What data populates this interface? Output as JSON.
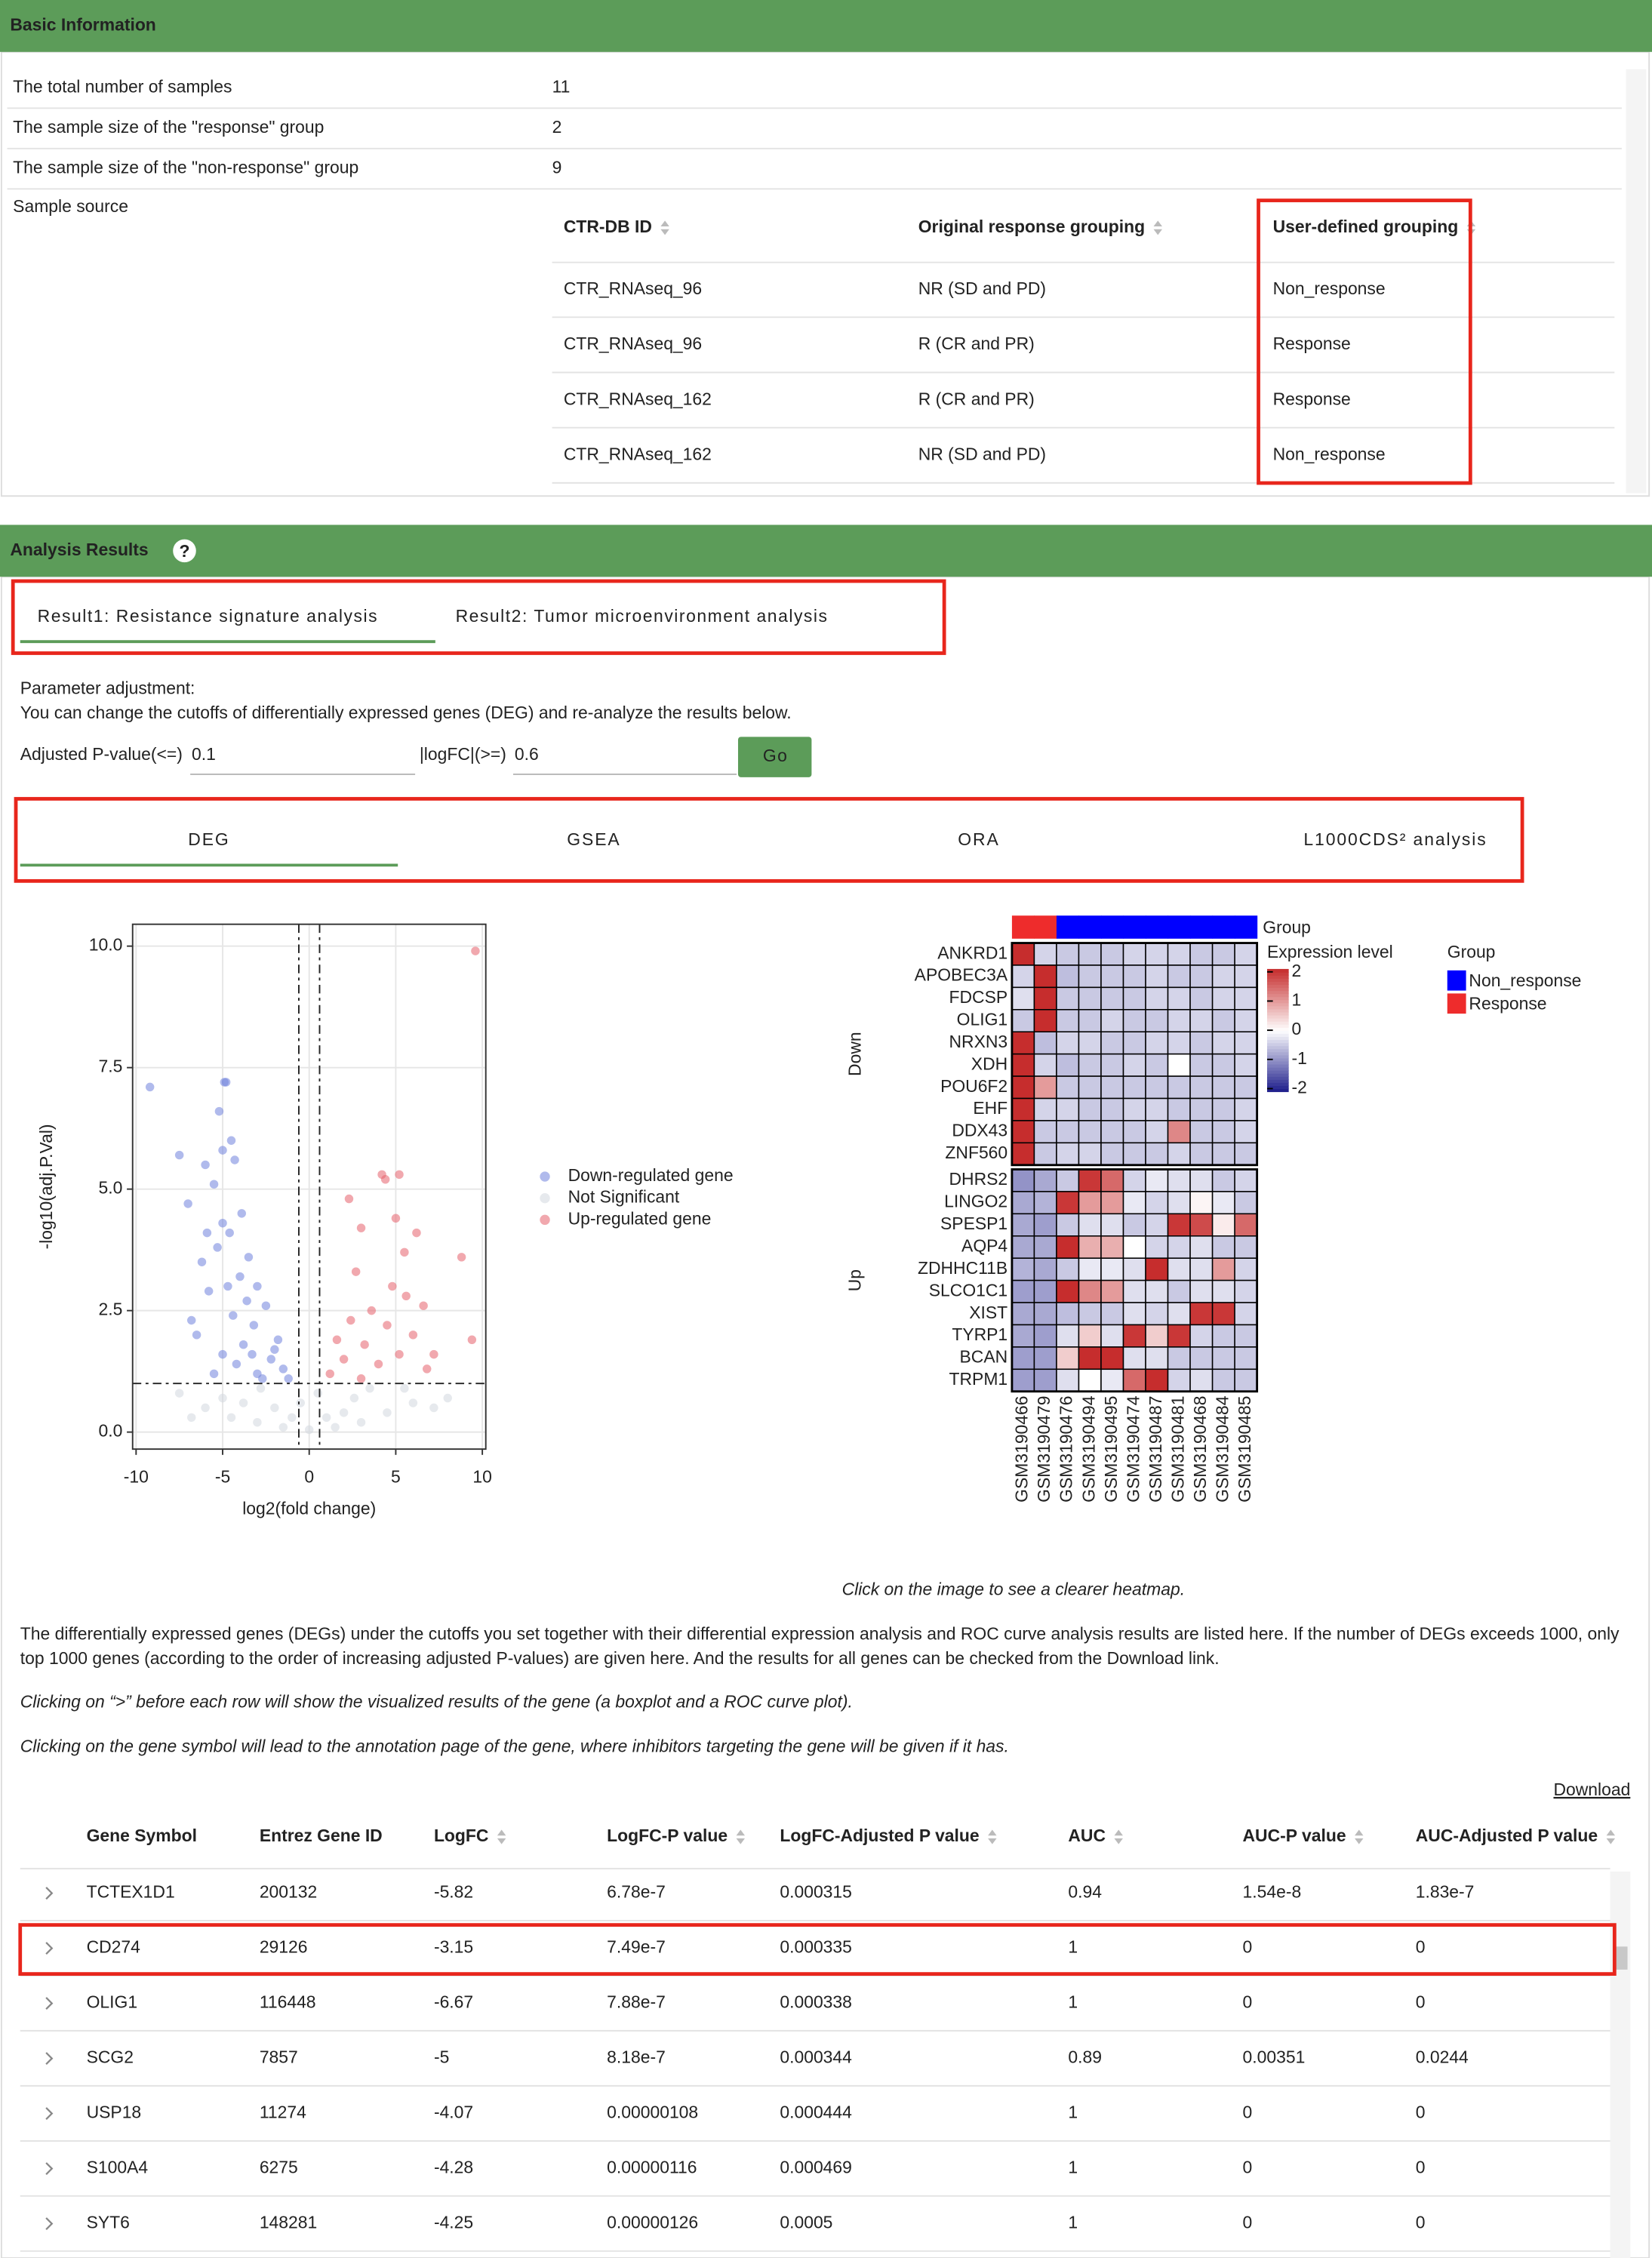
{
  "basic_information": {
    "title": "Basic Information",
    "rows": [
      [
        "The total number of samples",
        "11"
      ],
      [
        "The sample size of the \"response\" group",
        "2"
      ],
      [
        "The sample size of the \"non-response\" group",
        "9"
      ]
    ],
    "sample_source_label": "Sample source",
    "source_table": {
      "headers": [
        "CTR-DB ID",
        "Original response grouping",
        "User-defined grouping"
      ],
      "rows": [
        [
          "CTR_RNAseq_96",
          "NR (SD and PD)",
          "Non_response"
        ],
        [
          "CTR_RNAseq_96",
          "R (CR and PR)",
          "Response"
        ],
        [
          "CTR_RNAseq_162",
          "R (CR and PR)",
          "Response"
        ],
        [
          "CTR_RNAseq_162",
          "NR (SD and PD)",
          "Non_response"
        ]
      ]
    }
  },
  "analysis_results": {
    "title": "Analysis Results",
    "help_icon": "?",
    "tabs": [
      "Result1: Resistance signature analysis",
      "Result2: Tumor microenvironment analysis"
    ],
    "param_title": "Parameter adjustment:",
    "param_note": "You can change the cutoffs of differentially expressed genes (DEG) and re-analyze the results below.",
    "pval_label": "Adjusted P-value(<=)",
    "pval": "0.1",
    "logfc_label": "|logFC|(>=)",
    "logfc": "0.6",
    "go": "Go",
    "subtabs": [
      "DEG",
      "GSEA",
      "ORA",
      "L1000CDS² analysis"
    ]
  },
  "chart_data": [
    {
      "type": "scatter",
      "x_label": "log2(fold change)",
      "y_label": "-log10(adj.P.Val)",
      "xlim": [
        -10.2,
        10.2
      ],
      "ylim": [
        -0.35,
        10.45
      ],
      "xticks": [
        -10,
        -5,
        0,
        5,
        10
      ],
      "yticks": [
        {
          "value": 0,
          "label": "0.0"
        },
        2.5,
        {
          "value": 5,
          "label": "5.0"
        },
        7.5,
        {
          "value": 10,
          "label": "10.0"
        }
      ],
      "grid": true,
      "vlines": [
        -0.6,
        0.6
      ],
      "hlines": [
        1
      ],
      "series": [
        {
          "name": "Down-regulated gene",
          "color": "#6f82dc",
          "x": [
            -9.2,
            -7.5,
            -7,
            -4.8,
            -4.9,
            -5.2,
            -4.5,
            -5,
            -4.3,
            -6,
            -5.5,
            -3.9,
            -5,
            -4.6,
            -5.3,
            -3.5,
            -6.2,
            -4,
            -3,
            -5.8,
            -2.5,
            -4.4,
            -3.2,
            -6.5,
            -1.8,
            -3.8,
            -5,
            -2.2,
            -4.2,
            -1.5,
            -3,
            -5.5,
            -2.7,
            -6.8,
            -3.6,
            -2,
            -4.7,
            -1.2,
            -3.3,
            -5.9
          ],
          "values": [
            7.1,
            5.7,
            4.7,
            7.2,
            7.2,
            6.6,
            6,
            5.8,
            5.6,
            5.5,
            5.1,
            4.5,
            4.3,
            4.1,
            3.8,
            3.6,
            3.5,
            3.2,
            3,
            2.9,
            2.6,
            2.4,
            2.2,
            2,
            1.9,
            1.8,
            1.6,
            1.5,
            1.4,
            1.3,
            1.2,
            1.2,
            1.1,
            2.3,
            2.7,
            1.7,
            3,
            1.1,
            1.6,
            4.1
          ]
        },
        {
          "name": "Not Significant",
          "color": "#d2d7df",
          "x": [
            -7.5,
            -6,
            -4.5,
            -3,
            -1.5,
            0,
            1.5,
            3,
            4.5,
            6,
            7.2,
            -5,
            -2,
            2,
            -0.5,
            0.5,
            -2.8,
            3.5,
            5.5,
            -6.8,
            1,
            -1,
            2.6,
            -3.8,
            8
          ],
          "values": [
            0.8,
            0.5,
            0.3,
            0.2,
            0.1,
            0.05,
            0.1,
            0.2,
            0.4,
            0.6,
            0.5,
            0.7,
            0.5,
            0.4,
            0.6,
            0.8,
            0.9,
            0.9,
            0.9,
            0.3,
            0.3,
            0.3,
            0.7,
            0.6,
            0.7
          ]
        },
        {
          "name": "Up-regulated gene",
          "color": "#e5606c",
          "x": [
            9.6,
            8.8,
            9.4,
            4.2,
            4.4,
            5.2,
            2.3,
            5,
            6.2,
            3,
            5.5,
            2.7,
            4.8,
            5.6,
            6.6,
            3.6,
            2.4,
            4.5,
            6,
            1.6,
            3.2,
            5.2,
            2,
            4,
            6.8,
            1.2,
            3,
            7.2
          ],
          "values": [
            9.9,
            3.6,
            1.9,
            5.3,
            5.2,
            5.3,
            4.8,
            4.4,
            4.1,
            4.2,
            3.7,
            3.3,
            3,
            2.8,
            2.6,
            2.5,
            2.3,
            2.2,
            2,
            1.9,
            1.8,
            1.6,
            1.5,
            1.4,
            1.3,
            1.2,
            1.1,
            1.6
          ]
        }
      ]
    },
    {
      "type": "heatmap",
      "group_title": "Group",
      "legend_title": "Expression level",
      "samples": [
        "GSM3190466",
        "GSM3190479",
        "GSM3190476",
        "GSM3190494",
        "GSM3190495",
        "GSM3190474",
        "GSM3190487",
        "GSM3190481",
        "GSM3190468",
        "GSM3190484",
        "GSM3190485"
      ],
      "column_groups": [
        "Response",
        "Response",
        "Non_response",
        "Non_response",
        "Non_response",
        "Non_response",
        "Non_response",
        "Non_response",
        "Non_response",
        "Non_response",
        "Non_response"
      ],
      "groups": [
        {
          "name": "Non_response",
          "color": "#0000ff"
        },
        {
          "name": "Response",
          "color": "#ee2c2c"
        }
      ],
      "palette": [
        "#1c1c8a",
        "#ffffff",
        "#c62d2d"
      ],
      "clim": [
        -2.1,
        2.1
      ],
      "legend_ticks": [
        2,
        1,
        0,
        -1,
        -2
      ],
      "row_groups": [
        {
          "name": "Down",
          "genes": [
            "ANKRD1",
            "APOBEC3A",
            "FDCSP",
            "OLIG1",
            "NRXN3",
            "XDH",
            "POU6F2",
            "EHF",
            "DDX43",
            "ZNF560"
          ],
          "values": [
            [
              2.8,
              -0.4,
              -0.5,
              -0.5,
              -0.5,
              -0.4,
              -0.4,
              -0.4,
              -0.5,
              -0.5,
              -0.4
            ],
            [
              -0.4,
              2.8,
              -0.6,
              -0.5,
              -0.5,
              -0.5,
              -0.4,
              -0.5,
              -0.5,
              -0.4,
              -0.4
            ],
            [
              -0.3,
              2.8,
              -0.5,
              -0.5,
              -0.5,
              -0.5,
              -0.4,
              -0.4,
              -0.5,
              -0.4,
              -0.4
            ],
            [
              -0.5,
              2.8,
              -0.5,
              -0.5,
              -0.4,
              -0.5,
              -0.5,
              -0.4,
              -0.4,
              -0.5,
              -0.4
            ],
            [
              2.8,
              -0.6,
              -0.4,
              -0.4,
              -0.5,
              -0.5,
              -0.4,
              -0.4,
              -0.5,
              -0.4,
              -0.4
            ],
            [
              2.7,
              -0.4,
              -0.6,
              -0.5,
              -0.5,
              -0.4,
              -0.5,
              0,
              -0.5,
              -0.5,
              -0.4
            ],
            [
              2.6,
              1,
              -0.5,
              -0.5,
              -0.5,
              -0.5,
              -0.5,
              -0.5,
              -0.5,
              -0.5,
              -0.5
            ],
            [
              2.8,
              -0.4,
              -0.4,
              -0.5,
              -0.5,
              -0.4,
              -0.4,
              -0.5,
              -0.5,
              -0.5,
              -0.4
            ],
            [
              2.7,
              -0.5,
              -0.5,
              -0.5,
              -0.5,
              -0.5,
              -0.4,
              1.2,
              -0.5,
              -0.5,
              -0.4
            ],
            [
              2.8,
              -0.5,
              -0.4,
              -0.4,
              -0.5,
              -0.5,
              -0.5,
              -0.4,
              -0.5,
              -0.5,
              -0.5
            ]
          ]
        },
        {
          "name": "Up",
          "genes": [
            "DHRS2",
            "LINGO2",
            "SPESP1",
            "AQP4",
            "ZDHHC11B",
            "SLCO1C1",
            "XIST",
            "TYRP1",
            "BCAN",
            "TRPM1"
          ],
          "values": [
            [
              -1,
              -0.8,
              -0.5,
              2,
              1.5,
              -0.4,
              -0.2,
              -0.3,
              -0.3,
              -0.5,
              -0.4
            ],
            [
              -0.8,
              -0.7,
              2,
              1,
              1,
              -0.2,
              -0.4,
              -0.3,
              0.1,
              -0.2,
              -0.5
            ],
            [
              -0.8,
              -0.9,
              -0.5,
              -0.3,
              -0.3,
              -0.5,
              -0.4,
              2,
              1.8,
              0.2,
              1.5
            ],
            [
              -0.8,
              -0.8,
              2.2,
              0.8,
              0.8,
              0,
              -0.4,
              -0.4,
              -0.3,
              -0.5,
              -0.5
            ],
            [
              -0.7,
              -0.8,
              -0.5,
              -0.2,
              -0.2,
              -0.3,
              2.2,
              -0.3,
              -0.3,
              1,
              -0.4
            ],
            [
              -0.9,
              -0.9,
              2.2,
              1.2,
              1,
              -0.3,
              -0.3,
              -0.5,
              -0.3,
              -0.3,
              -0.4
            ],
            [
              -0.8,
              -0.8,
              -0.6,
              -0.5,
              -0.5,
              -0.3,
              -0.4,
              -0.3,
              2,
              2,
              -0.4
            ],
            [
              -0.8,
              -0.9,
              -0.3,
              0.5,
              -0.3,
              2,
              0.5,
              2,
              -0.4,
              -0.5,
              -0.5
            ],
            [
              -0.9,
              -0.9,
              0.5,
              2.3,
              2.2,
              -0.3,
              -0.3,
              -0.5,
              -0.5,
              -0.5,
              -0.5
            ],
            [
              -0.9,
              -0.9,
              -0.3,
              0,
              -0.2,
              1.5,
              2.5,
              -0.4,
              -0.3,
              -0.5,
              -0.5
            ]
          ]
        }
      ]
    }
  ],
  "notes": {
    "caption": "Click on the image to see a clearer heatmap.",
    "description": "The differentially expressed genes (DEGs) under the cutoffs you set together with their differential expression analysis and ROC curve analysis results are listed here. If the number of DEGs exceeds 1000, only top 1000 genes (according to the order of increasing adjusted P-values) are given here. And the results for all genes can be checked from the Download link.",
    "hint_blue": "Clicking on “>” before each row will show the visualized results of the gene (a boxplot and a ROC curve plot).",
    "hint_red": "Clicking on the gene symbol will lead to the annotation page of the gene, where inhibitors targeting the gene will be given if it has."
  },
  "deg_table": {
    "download": "Download",
    "headers": [
      "Gene Symbol",
      "Entrez Gene ID",
      "LogFC",
      "LogFC-P value",
      "LogFC-Adjusted P value",
      "AUC",
      "AUC-P value",
      "AUC-Adjusted P value"
    ],
    "rows": [
      [
        "TCTEX1D1",
        "200132",
        "-5.82",
        "6.78e-7",
        "0.000315",
        "0.94",
        "1.54e-8",
        "1.83e-7"
      ],
      [
        "CD274",
        "29126",
        "-3.15",
        "7.49e-7",
        "0.000335",
        "1",
        "0",
        "0"
      ],
      [
        "OLIG1",
        "116448",
        "-6.67",
        "7.88e-7",
        "0.000338",
        "1",
        "0",
        "0"
      ],
      [
        "SCG2",
        "7857",
        "-5",
        "8.18e-7",
        "0.000344",
        "0.89",
        "0.00351",
        "0.0244"
      ],
      [
        "USP18",
        "11274",
        "-4.07",
        "0.00000108",
        "0.000444",
        "1",
        "0",
        "0"
      ],
      [
        "S100A4",
        "6275",
        "-4.28",
        "0.00000116",
        "0.000469",
        "1",
        "0",
        "0"
      ],
      [
        "SYT6",
        "148281",
        "-4.25",
        "0.00000126",
        "0.0005",
        "1",
        "0",
        "0"
      ]
    ]
  }
}
